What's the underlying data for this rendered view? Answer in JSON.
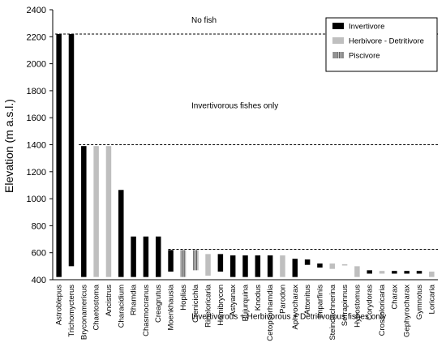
{
  "chart_data": {
    "type": "bar",
    "subtype": "floating-range",
    "ylabel": "Elevation (m a.s.l.)",
    "ylim": [
      400,
      2400
    ],
    "yticks": [
      400,
      600,
      800,
      1000,
      1200,
      1400,
      1600,
      1800,
      2000,
      2200,
      2400
    ],
    "grid": false,
    "legend_position": "top-right",
    "series": [
      {
        "name": "Invertivore",
        "color": "#000000",
        "pattern": "solid"
      },
      {
        "name": "Herbivore - Detritivore",
        "color": "#bfbfbf",
        "pattern": "solid"
      },
      {
        "name": "Piscivore",
        "color": "#666666",
        "pattern": "stripes"
      }
    ],
    "bars": [
      {
        "taxon": "Astroblepus",
        "low": 420,
        "high": 2220,
        "series": 0
      },
      {
        "taxon": "Trichomycterus",
        "low": 500,
        "high": 2220,
        "series": 0
      },
      {
        "taxon": "Bryconamericus",
        "low": 420,
        "high": 1390,
        "series": 0
      },
      {
        "taxon": "Chaetostoma",
        "low": 420,
        "high": 1390,
        "series": 1
      },
      {
        "taxon": "Ancistrus",
        "low": 420,
        "high": 1390,
        "series": 1
      },
      {
        "taxon": "Characidium",
        "low": 420,
        "high": 1065,
        "series": 0
      },
      {
        "taxon": "Rhamdia",
        "low": 420,
        "high": 720,
        "series": 0
      },
      {
        "taxon": "Chasmocranus",
        "low": 420,
        "high": 720,
        "series": 0
      },
      {
        "taxon": "Creagrutus",
        "low": 420,
        "high": 720,
        "series": 0
      },
      {
        "taxon": "Moenkhausia",
        "low": 460,
        "high": 620,
        "series": 0
      },
      {
        "taxon": "Hoplias",
        "low": 420,
        "high": 620,
        "series": 2
      },
      {
        "taxon": "Crenicichla",
        "low": 470,
        "high": 620,
        "series": 2
      },
      {
        "taxon": "Rineloricaria",
        "low": 430,
        "high": 590,
        "series": 1
      },
      {
        "taxon": "Hemibrycon",
        "low": 460,
        "high": 590,
        "series": 0
      },
      {
        "taxon": "Astyanax",
        "low": 420,
        "high": 580,
        "series": 0
      },
      {
        "taxon": "Bujurquina",
        "low": 420,
        "high": 580,
        "series": 0
      },
      {
        "taxon": "Knodus",
        "low": 420,
        "high": 580,
        "series": 0
      },
      {
        "taxon": "Cetopsorhamdia",
        "low": 420,
        "high": 580,
        "series": 0
      },
      {
        "taxon": "Parodon",
        "low": 420,
        "high": 580,
        "series": 1
      },
      {
        "taxon": "Aphyocharax",
        "low": 420,
        "high": 555,
        "series": 0
      },
      {
        "taxon": "Attonitus",
        "low": 510,
        "high": 550,
        "series": 0
      },
      {
        "taxon": "Imparfinis",
        "low": 490,
        "high": 520,
        "series": 0
      },
      {
        "taxon": "Steindachnerina",
        "low": 480,
        "high": 520,
        "series": 1
      },
      {
        "taxon": "Serrapinnus",
        "low": 505,
        "high": 515,
        "series": 1
      },
      {
        "taxon": "Hypostomus",
        "low": 420,
        "high": 500,
        "series": 1
      },
      {
        "taxon": "Corydoras",
        "low": 445,
        "high": 470,
        "series": 0
      },
      {
        "taxon": "Crossoloricaria",
        "low": 445,
        "high": 465,
        "series": 1
      },
      {
        "taxon": "Charax",
        "low": 445,
        "high": 465,
        "series": 0
      },
      {
        "taxon": "Gephyrocharax",
        "low": 445,
        "high": 465,
        "series": 0
      },
      {
        "taxon": "Gymnotus",
        "low": 445,
        "high": 465,
        "series": 0
      },
      {
        "taxon": "Loricaria",
        "low": 420,
        "high": 460,
        "series": 1
      }
    ],
    "reference_lines": [
      {
        "y": 2220,
        "label": "No fish"
      },
      {
        "y": 1400,
        "label": "Invertivorous fishes only"
      },
      {
        "y": 625,
        "label": "Invertivorous + Herbivorous + Detritivorous fishes only"
      }
    ]
  }
}
